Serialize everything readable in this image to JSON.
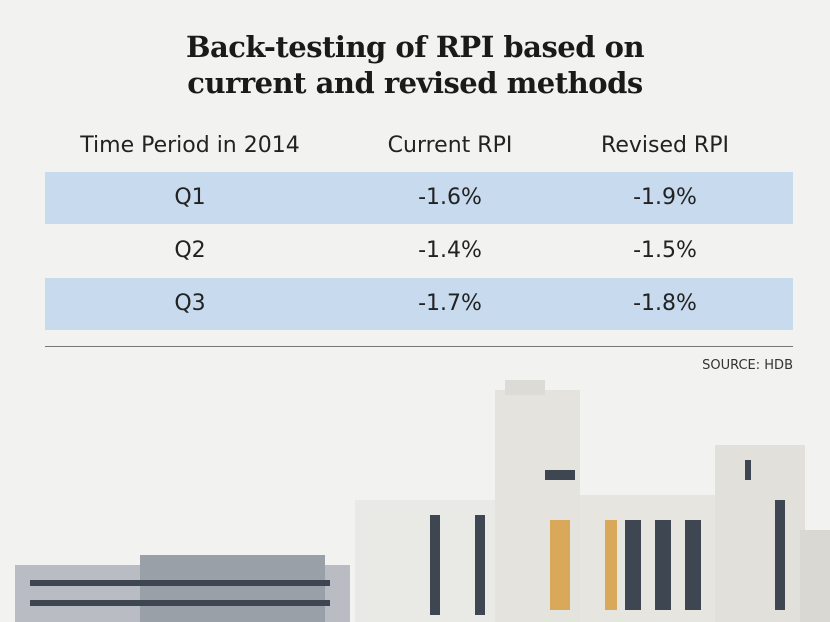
{
  "header": {
    "title": [
      "Back-testing of RPI based on",
      "current and revised methods"
    ]
  },
  "table": {
    "columns": [
      "Time Period in 2014",
      "Current RPI",
      "Revised RPI"
    ],
    "rows": [
      [
        "Q1",
        "-1.6%",
        "-1.9%"
      ],
      [
        "Q2",
        "-1.4%",
        "-1.5%"
      ],
      [
        "Q3",
        "-1.7%",
        "-1.8%"
      ]
    ]
  },
  "source": "SOURCE: HDB"
}
